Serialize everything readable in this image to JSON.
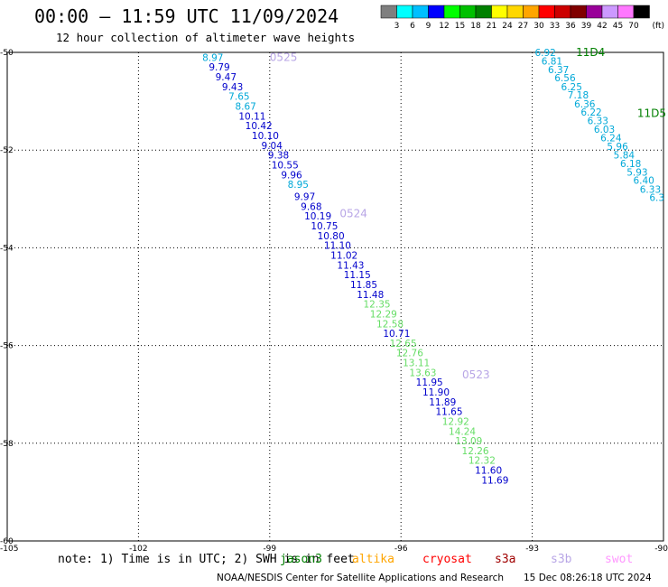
{
  "header": {
    "title": "00:00 — 11:59 UTC 11/09/2024",
    "subtitle": "12 hour collection of altimeter wave heights"
  },
  "legend": {
    "unit": "(ft)",
    "bins": [
      {
        "label": "3",
        "color": "#7f7f7f"
      },
      {
        "label": "6",
        "color": "#00ffff"
      },
      {
        "label": "9",
        "color": "#00bfff"
      },
      {
        "label": "12",
        "color": "#0000ff"
      },
      {
        "label": "15",
        "color": "#00ff00"
      },
      {
        "label": "18",
        "color": "#00c000"
      },
      {
        "label": "21",
        "color": "#008000"
      },
      {
        "label": "24",
        "color": "#ffff00"
      },
      {
        "label": "27",
        "color": "#ffd700"
      },
      {
        "label": "30",
        "color": "#ffa500"
      },
      {
        "label": "33",
        "color": "#ff0000"
      },
      {
        "label": "36",
        "color": "#cc0000"
      },
      {
        "label": "39",
        "color": "#800000"
      },
      {
        "label": "42",
        "color": "#990099"
      },
      {
        "label": "45",
        "color": "#cc99ff"
      },
      {
        "label": "70",
        "color": "#ff77ff"
      },
      {
        "label": "",
        "color": "#000000"
      }
    ]
  },
  "chart_data": {
    "type": "scatter",
    "xlim": [
      -105,
      -90
    ],
    "ylim": [
      -60,
      -50
    ],
    "xticks": [
      -105,
      -102,
      -99,
      -96,
      -93,
      -90
    ],
    "yticks": [
      -50,
      -52,
      -54,
      -56,
      -58,
      -60
    ],
    "grid": true,
    "tracks": [
      {
        "color": "#00a8d8",
        "points": [
          {
            "x": -92.7,
            "y": -50.0,
            "v": "6.92"
          },
          {
            "x": -92.55,
            "y": -50.18,
            "v": "6.81"
          },
          {
            "x": -92.4,
            "y": -50.35,
            "v": "6.37"
          },
          {
            "x": -92.25,
            "y": -50.52,
            "v": "6.56"
          },
          {
            "x": -92.1,
            "y": -50.7,
            "v": "6.25"
          },
          {
            "x": -91.95,
            "y": -50.87,
            "v": "7.18"
          },
          {
            "x": -91.8,
            "y": -51.05,
            "v": "6.36"
          },
          {
            "x": -91.65,
            "y": -51.22,
            "v": "6.22"
          },
          {
            "x": -91.5,
            "y": -51.4,
            "v": "6.33"
          },
          {
            "x": -91.35,
            "y": -51.57,
            "v": "6.03"
          },
          {
            "x": -91.2,
            "y": -51.75,
            "v": "6.24"
          },
          {
            "x": -91.05,
            "y": -51.92,
            "v": "5.96"
          },
          {
            "x": -90.9,
            "y": -52.1,
            "v": "5.84"
          },
          {
            "x": -90.75,
            "y": -52.27,
            "v": "6.18"
          },
          {
            "x": -90.6,
            "y": -52.45,
            "v": "5.93"
          },
          {
            "x": -90.45,
            "y": -52.62,
            "v": "6.40"
          },
          {
            "x": -90.3,
            "y": -52.8,
            "v": "6.33"
          },
          {
            "x": -90.15,
            "y": -52.97,
            "v": "6.3"
          }
        ]
      },
      {
        "color": "#mixed",
        "points": [
          {
            "x": -100.3,
            "y": -50.1,
            "v": "8.97",
            "c": "#00a8d8"
          },
          {
            "x": -100.15,
            "y": -50.3,
            "v": "9.79",
            "c": "#0000cc"
          },
          {
            "x": -100.0,
            "y": -50.5,
            "v": "9.47",
            "c": "#0000cc"
          },
          {
            "x": -99.85,
            "y": -50.7,
            "v": "9.43",
            "c": "#0000cc"
          },
          {
            "x": -99.7,
            "y": -50.9,
            "v": "7.65",
            "c": "#00a8d8"
          },
          {
            "x": -99.55,
            "y": -51.1,
            "v": "8.67",
            "c": "#00a8d8"
          },
          {
            "x": -99.4,
            "y": -51.3,
            "v": "10.11",
            "c": "#0000cc"
          },
          {
            "x": -99.25,
            "y": -51.5,
            "v": "10.42",
            "c": "#0000cc"
          },
          {
            "x": -99.1,
            "y": -51.7,
            "v": "10.10",
            "c": "#0000cc"
          },
          {
            "x": -98.95,
            "y": -51.9,
            "v": "9.04",
            "c": "#0000cc"
          },
          {
            "x": -98.8,
            "y": -52.1,
            "v": "9.38",
            "c": "#0000cc"
          },
          {
            "x": -98.65,
            "y": -52.3,
            "v": "10.55",
            "c": "#0000cc"
          },
          {
            "x": -98.5,
            "y": -52.5,
            "v": "9.96",
            "c": "#0000cc"
          },
          {
            "x": -98.35,
            "y": -52.7,
            "v": "8.95",
            "c": "#00a8d8"
          },
          {
            "x": -98.2,
            "y": -52.95,
            "v": "9.97",
            "c": "#0000cc"
          },
          {
            "x": -98.05,
            "y": -53.15,
            "v": "9.68",
            "c": "#0000cc"
          },
          {
            "x": -97.9,
            "y": -53.35,
            "v": "10.19",
            "c": "#0000cc"
          },
          {
            "x": -97.75,
            "y": -53.55,
            "v": "10.75",
            "c": "#0000cc"
          },
          {
            "x": -97.6,
            "y": -53.75,
            "v": "10.80",
            "c": "#0000cc"
          },
          {
            "x": -97.45,
            "y": -53.95,
            "v": "11.10",
            "c": "#0000cc"
          },
          {
            "x": -97.3,
            "y": -54.15,
            "v": "11.02",
            "c": "#0000cc"
          },
          {
            "x": -97.15,
            "y": -54.35,
            "v": "11.43",
            "c": "#0000cc"
          },
          {
            "x": -97.0,
            "y": -54.55,
            "v": "11.15",
            "c": "#0000cc"
          },
          {
            "x": -96.85,
            "y": -54.75,
            "v": "11.85",
            "c": "#0000cc"
          },
          {
            "x": -96.7,
            "y": -54.95,
            "v": "11.48",
            "c": "#0000cc"
          },
          {
            "x": -96.55,
            "y": -55.15,
            "v": "12.35",
            "c": "#66dd66"
          },
          {
            "x": -96.4,
            "y": -55.35,
            "v": "12.29",
            "c": "#66dd66"
          },
          {
            "x": -96.25,
            "y": -55.55,
            "v": "12.58",
            "c": "#66dd66"
          },
          {
            "x": -96.1,
            "y": -55.75,
            "v": "10.71",
            "c": "#0000cc"
          },
          {
            "x": -95.95,
            "y": -55.95,
            "v": "12.65",
            "c": "#66dd66"
          },
          {
            "x": -95.8,
            "y": -56.15,
            "v": "12.76",
            "c": "#66dd66"
          },
          {
            "x": -95.65,
            "y": -56.35,
            "v": "13.11",
            "c": "#66dd66"
          },
          {
            "x": -95.5,
            "y": -56.55,
            "v": "13.63",
            "c": "#66dd66"
          },
          {
            "x": -95.35,
            "y": -56.75,
            "v": "11.95",
            "c": "#0000cc"
          },
          {
            "x": -95.2,
            "y": -56.95,
            "v": "11.90",
            "c": "#0000cc"
          },
          {
            "x": -95.05,
            "y": -57.15,
            "v": "11.89",
            "c": "#0000cc"
          },
          {
            "x": -94.9,
            "y": -57.35,
            "v": "11.65",
            "c": "#0000cc"
          },
          {
            "x": -94.75,
            "y": -57.55,
            "v": "12.92",
            "c": "#66dd66"
          },
          {
            "x": -94.6,
            "y": -57.75,
            "v": "14.24",
            "c": "#66dd66"
          },
          {
            "x": -94.45,
            "y": -57.95,
            "v": "13.09",
            "c": "#66dd66"
          },
          {
            "x": -94.3,
            "y": -58.15,
            "v": "12.26",
            "c": "#66dd66"
          },
          {
            "x": -94.15,
            "y": -58.35,
            "v": "12.32",
            "c": "#66dd66"
          },
          {
            "x": -94.0,
            "y": -58.55,
            "v": "11.60",
            "c": "#0000cc"
          },
          {
            "x": -93.85,
            "y": -58.75,
            "v": "11.69",
            "c": "#0000cc"
          }
        ]
      }
    ],
    "pass_labels": [
      {
        "text": "0525",
        "x": -99.0,
        "y": -50.1,
        "color": "#b8a6e6"
      },
      {
        "text": "0524",
        "x": -97.4,
        "y": -53.3,
        "color": "#b8a6e6"
      },
      {
        "text": "0523",
        "x": -94.6,
        "y": -56.6,
        "color": "#b8a6e6"
      },
      {
        "text": "11D4",
        "x": -92.0,
        "y": -50.0,
        "color": "#008000"
      },
      {
        "text": "11D5",
        "x": -90.6,
        "y": -51.25,
        "color": "#008000"
      }
    ]
  },
  "footer": {
    "note": "note: 1) Time is in UTC; 2) SWH is in feet",
    "satellites": [
      {
        "name": "jason3",
        "color": "#008000"
      },
      {
        "name": "altika",
        "color": "#ffa500"
      },
      {
        "name": "cryosat",
        "color": "#ff0000"
      },
      {
        "name": "s3a",
        "color": "#a00000"
      },
      {
        "name": "s3b",
        "color": "#b8a6e6"
      },
      {
        "name": "swot",
        "color": "#ff99ff"
      }
    ],
    "credit": "NOAA/NESDIS Center for Satellite Applications and Research",
    "stamp": "15 Dec 08:26:18 UTC 2024"
  }
}
